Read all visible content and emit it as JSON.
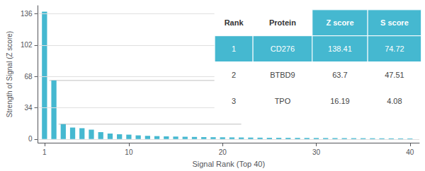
{
  "chart_data": {
    "type": "bar",
    "xlabel": "Signal Rank (Top 40)",
    "ylabel": "Strength of Signal (Z score)",
    "x": [
      1,
      2,
      3,
      4,
      5,
      6,
      7,
      8,
      9,
      10,
      11,
      12,
      13,
      14,
      15,
      16,
      17,
      18,
      19,
      20,
      21,
      22,
      23,
      24,
      25,
      26,
      27,
      28,
      29,
      30,
      31,
      32,
      33,
      34,
      35,
      36,
      37,
      38,
      39,
      40
    ],
    "values": [
      138.41,
      63.7,
      16.19,
      12.5,
      11.8,
      10.2,
      7.5,
      6.0,
      5.2,
      4.8,
      4.0,
      3.5,
      3.2,
      2.9,
      2.7,
      2.5,
      2.3,
      2.1,
      2.0,
      1.9,
      1.8,
      1.7,
      1.6,
      1.5,
      1.4,
      1.35,
      1.3,
      1.25,
      1.2,
      1.15,
      1.1,
      1.05,
      1.0,
      0.95,
      0.9,
      0.85,
      0.8,
      0.75,
      0.7,
      0.65
    ],
    "color": "#45b8d0",
    "xlim": [
      0.3,
      41
    ],
    "xticks": [
      1,
      10,
      20,
      30,
      40
    ],
    "ylim": [
      -4,
      145
    ],
    "yticks": [
      0,
      34,
      68,
      102,
      136
    ],
    "grid": true,
    "reference_lines": [
      {
        "y": 63.7,
        "x": [
          1.5,
          22
        ]
      },
      {
        "y": 16.19,
        "x": [
          2.5,
          22
        ]
      }
    ],
    "table": {
      "headers": [
        "Rank",
        "Protein",
        "Z score",
        "S score"
      ],
      "rows": [
        [
          "1",
          "CD276",
          "138.41",
          "74.72"
        ],
        [
          "2",
          "BTBD9",
          "63.7",
          "47.51"
        ],
        [
          "3",
          "TPO",
          "16.19",
          "4.08"
        ]
      ]
    }
  }
}
